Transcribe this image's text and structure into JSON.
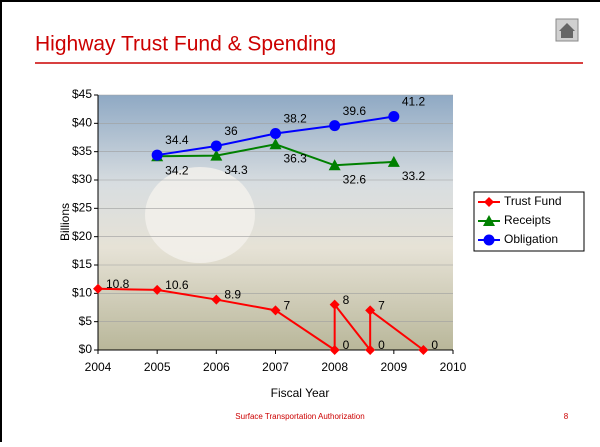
{
  "slide": {
    "title": "Highway Trust Fund & Spending",
    "footer": "Surface Transportation Authorization",
    "page_number": "8"
  },
  "chart_data": {
    "type": "line",
    "x_label": "Fiscal Year",
    "y_label": "Billions",
    "xlim": [
      2004,
      2010
    ],
    "xticks": [
      2004,
      2005,
      2006,
      2007,
      2008,
      2009,
      2010
    ],
    "ylim": [
      0,
      45
    ],
    "yticks": [
      {
        "value": 0,
        "label": "$0"
      },
      {
        "value": 5,
        "label": "$5"
      },
      {
        "value": 10,
        "label": "$10"
      },
      {
        "value": 15,
        "label": "$15"
      },
      {
        "value": 20,
        "label": "$20"
      },
      {
        "value": 25,
        "label": "$25"
      },
      {
        "value": 30,
        "label": "$30"
      },
      {
        "value": 35,
        "label": "$35"
      },
      {
        "value": 40,
        "label": "$40"
      },
      {
        "value": 45,
        "label": "$45"
      }
    ],
    "legend": "right",
    "series": [
      {
        "name": "Trust Fund",
        "color": "#ff0000",
        "marker": "diamond",
        "x": [
          2004,
          2005,
          2006,
          2007,
          2008,
          2008,
          2008.6,
          2008.6,
          2009.5
        ],
        "values": [
          10.8,
          10.6,
          8.9,
          7,
          0,
          8,
          0,
          7,
          0
        ]
      },
      {
        "name": "Receipts",
        "color": "#008000",
        "marker": "triangle",
        "x": [
          2005,
          2006,
          2007,
          2008,
          2009
        ],
        "values": [
          34.2,
          34.3,
          36.3,
          32.6,
          33.2
        ]
      },
      {
        "name": "Obligation",
        "color": "#0000ff",
        "marker": "circle",
        "x": [
          2005,
          2006,
          2007,
          2008,
          2009
        ],
        "values": [
          34.4,
          36,
          38.2,
          39.6,
          41.2
        ]
      }
    ]
  }
}
